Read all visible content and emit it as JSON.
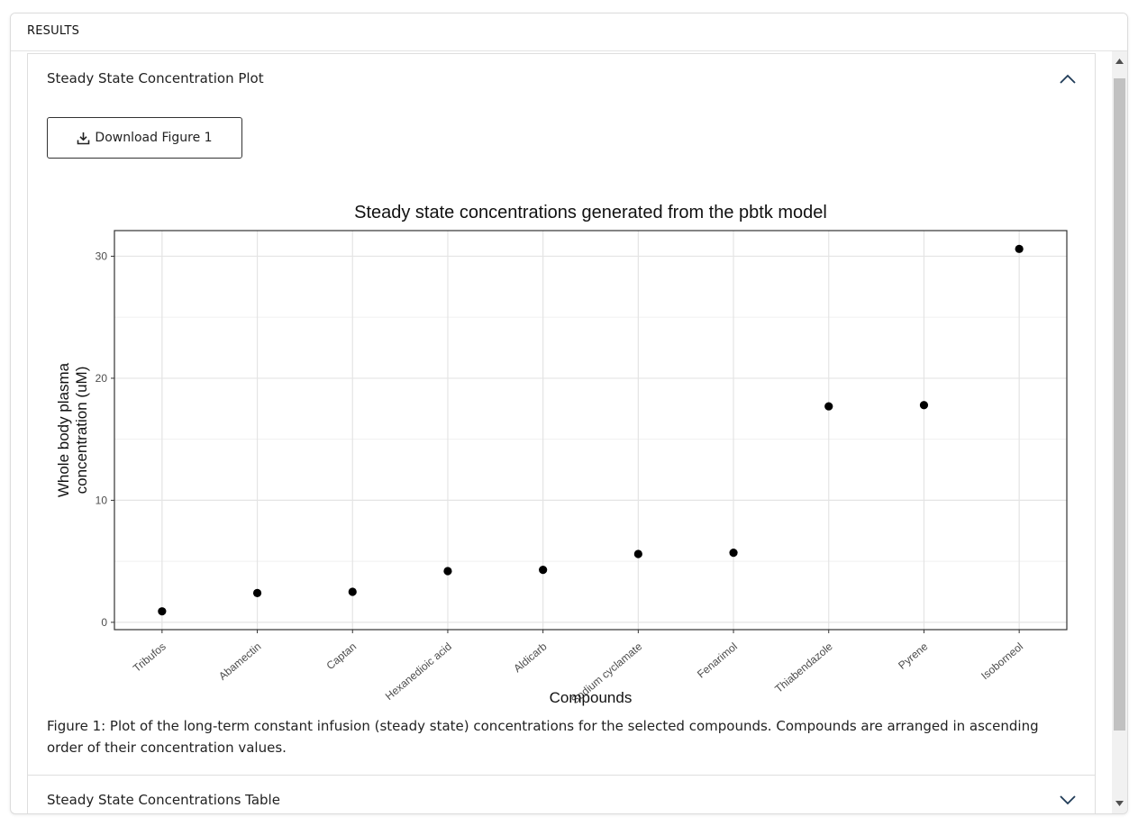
{
  "results_header": "RESULTS",
  "plot_section": {
    "title": "Steady State Concentration Plot",
    "expanded": true
  },
  "download_button": {
    "label": "Download Figure 1",
    "icon": "download-icon"
  },
  "table_section": {
    "title": "Steady State Concentrations Table",
    "expanded": false
  },
  "caption": "Figure 1: Plot of the long-term constant infusion (steady state) concentrations for the selected compounds. Compounds are arranged in ascending order of their concentration values.",
  "chart_data": {
    "type": "scatter",
    "title": "Steady state concentrations generated from the pbtk model",
    "xlabel": "Compounds",
    "ylabel": "Whole body plasma concentration (uM)",
    "ylabel_lines": [
      "Whole body plasma",
      "concentration (uM)"
    ],
    "categories": [
      "Tribufos",
      "Abamectin",
      "Captan",
      "Hexanedioic acid",
      "Aldicarb",
      "Sodium cyclamate",
      "Fenarimol",
      "Thiabendazole",
      "Pyrene",
      "Isoborneol"
    ],
    "values": [
      0.9,
      2.4,
      2.5,
      4.2,
      4.3,
      5.6,
      5.7,
      17.7,
      17.8,
      30.6
    ],
    "ylim": [
      -0.6,
      32.1
    ],
    "yticks": [
      0,
      10,
      20,
      30
    ],
    "grid": true,
    "point_color": "#000000"
  }
}
